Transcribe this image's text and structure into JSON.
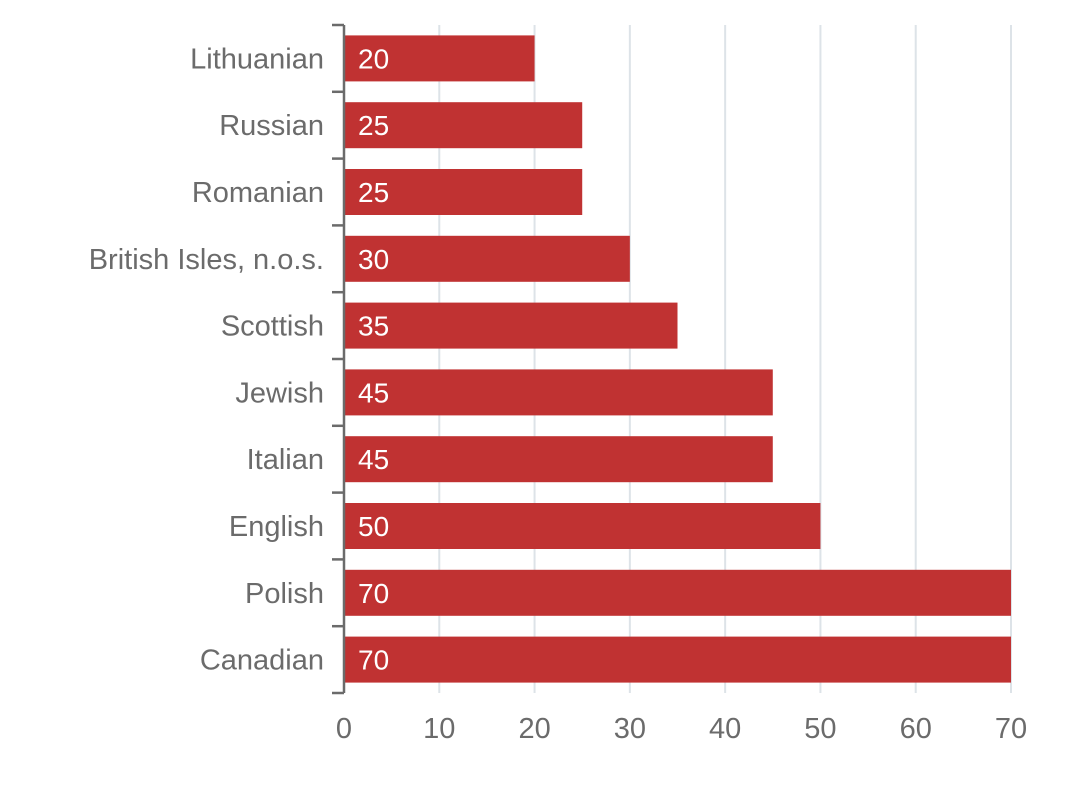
{
  "chart_data": {
    "type": "bar",
    "orientation": "horizontal",
    "categories": [
      "Lithuanian",
      "Russian",
      "Romanian",
      "British Isles, n.o.s.",
      "Scottish",
      "Jewish",
      "Italian",
      "English",
      "Polish",
      "Canadian"
    ],
    "values": [
      20,
      25,
      25,
      30,
      35,
      45,
      45,
      50,
      70,
      70
    ],
    "xticks": [
      "0",
      "10",
      "20",
      "30",
      "40",
      "50",
      "60",
      "70"
    ],
    "xlim": [
      0,
      70
    ],
    "title": "",
    "xlabel": "",
    "ylabel": "",
    "grid": "vertical",
    "legend": "none",
    "bar_color": "#c03232",
    "label_color": "#ffffff"
  }
}
